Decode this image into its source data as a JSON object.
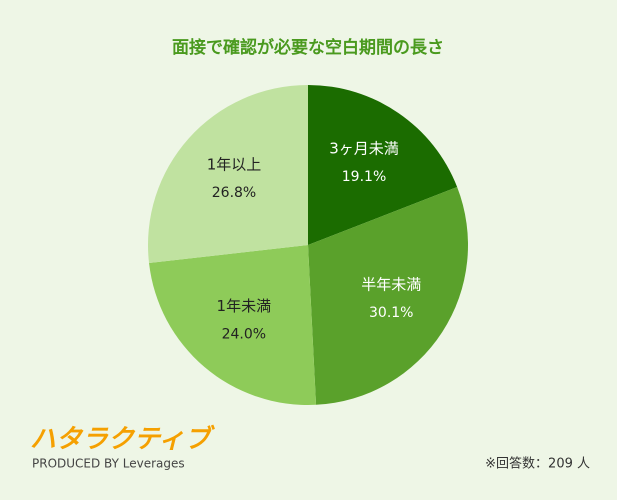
{
  "chart_data": {
    "type": "pie",
    "title": "面接で確認が必要な空白期間の長さ",
    "categories": [
      "3ヶ月未満",
      "半年未満",
      "1年未満",
      "1年以上"
    ],
    "values": [
      19.1,
      30.1,
      24.0,
      26.8
    ],
    "value_labels": [
      "19.1%",
      "30.1%",
      "24.0%",
      "26.8%"
    ],
    "colors": [
      "#1b6c00",
      "#5aa12b",
      "#8ecb59",
      "#c0e2a0"
    ]
  },
  "logo": "ハタラクティブ",
  "credit": "PRODUCED BY Leverages",
  "note": "※回答数：209 人"
}
